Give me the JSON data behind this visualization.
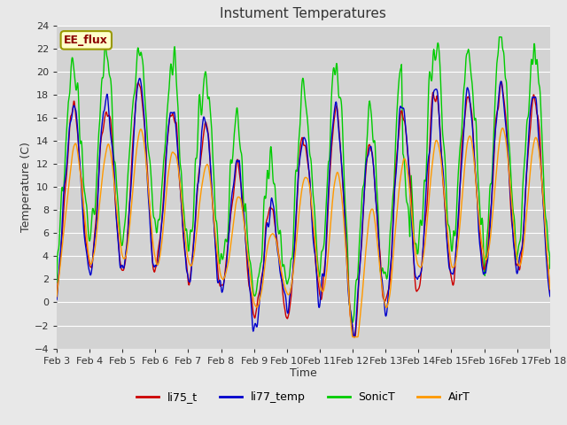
{
  "title": "Instument Temperatures",
  "xlabel": "Time",
  "ylabel": "Temperature (C)",
  "ylim": [
    -4,
    24
  ],
  "yticks": [
    -4,
    -2,
    0,
    2,
    4,
    6,
    8,
    10,
    12,
    14,
    16,
    18,
    20,
    22,
    24
  ],
  "x_labels": [
    "Feb 3",
    "Feb 4",
    "Feb 5",
    "Feb 6",
    "Feb 7",
    "Feb 8",
    "Feb 9",
    "Feb 10",
    "Feb 11",
    "Feb 12",
    "Feb 13",
    "Feb 14",
    "Feb 15",
    "Feb 16",
    "Feb 17",
    "Feb 18"
  ],
  "colors": {
    "li75_t": "#cc0000",
    "li77_temp": "#0000cc",
    "SonicT": "#00cc00",
    "AirT": "#ff9900"
  },
  "legend_label": "EE_flux",
  "background_color": "#e8e8e8",
  "plot_bg_color": "#d3d3d3",
  "line_width": 1.0,
  "n_points": 1440
}
